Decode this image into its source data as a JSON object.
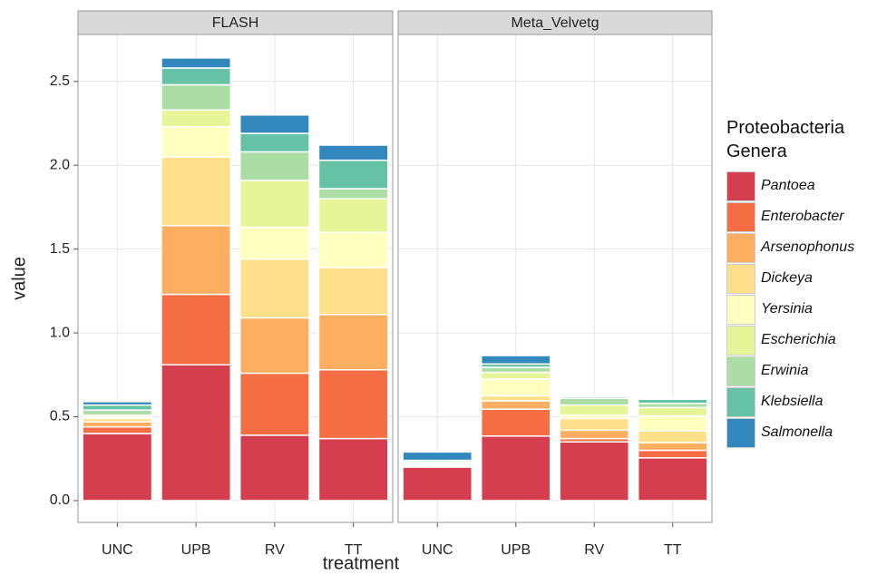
{
  "chart_data": {
    "type": "bar",
    "stacked": true,
    "facets": [
      "FLASH",
      "Meta_Velvetg"
    ],
    "categories": [
      "UNC",
      "UPB",
      "RV",
      "TT"
    ],
    "x_label": "treatment",
    "y_label": "value",
    "legend_title": "Proteobacteria Genera",
    "ylim": [
      -0.13,
      2.78
    ],
    "yticks": [
      {
        "value": 0,
        "label": "0.0"
      },
      {
        "value": 0.5,
        "label": "0.5"
      },
      {
        "value": 1,
        "label": "1.0"
      },
      {
        "value": 1.5,
        "label": "1.5"
      },
      {
        "value": 2,
        "label": "2.0"
      },
      {
        "value": 2.5,
        "label": "2.5"
      }
    ],
    "grid": true,
    "series": [
      {
        "name": "Pantoea",
        "color": "#d53e4f",
        "values": [
          [
            0.4,
            0.81,
            0.39,
            0.37
          ],
          [
            0.2,
            0.385,
            0.35,
            0.255
          ]
        ]
      },
      {
        "name": "Enterobacter",
        "color": "#f46d43",
        "values": [
          [
            0.04,
            0.42,
            0.37,
            0.41
          ],
          [
            0.005,
            0.16,
            0.02,
            0.045
          ]
        ]
      },
      {
        "name": "Arsenophonus",
        "color": "#fdae61",
        "values": [
          [
            0.03,
            0.41,
            0.33,
            0.33
          ],
          [
            0.005,
            0.05,
            0.05,
            0.045
          ]
        ]
      },
      {
        "name": "Dickeya",
        "color": "#fee08b",
        "values": [
          [
            0.02,
            0.41,
            0.35,
            0.28
          ],
          [
            0.005,
            0.03,
            0.07,
            0.07
          ]
        ]
      },
      {
        "name": "Yersinia",
        "color": "#ffffbf",
        "values": [
          [
            0.01,
            0.18,
            0.19,
            0.21
          ],
          [
            0.005,
            0.1,
            0.02,
            0.09
          ]
        ]
      },
      {
        "name": "Escherichia",
        "color": "#e6f598",
        "values": [
          [
            0.01,
            0.1,
            0.28,
            0.2
          ],
          [
            0.005,
            0.04,
            0.06,
            0.05
          ]
        ]
      },
      {
        "name": "Erwinia",
        "color": "#abdda4",
        "values": [
          [
            0.03,
            0.15,
            0.17,
            0.06
          ],
          [
            0.005,
            0.03,
            0.04,
            0.025
          ]
        ]
      },
      {
        "name": "Klebsiella",
        "color": "#66c2a5",
        "values": [
          [
            0.03,
            0.1,
            0.11,
            0.17
          ],
          [
            0.01,
            0.02,
            0.01,
            0.025
          ]
        ]
      },
      {
        "name": "Salmonella",
        "color": "#3288bd",
        "values": [
          [
            0.02,
            0.06,
            0.11,
            0.09
          ],
          [
            0.05,
            0.05,
            0.005,
            0.005
          ]
        ]
      }
    ]
  }
}
